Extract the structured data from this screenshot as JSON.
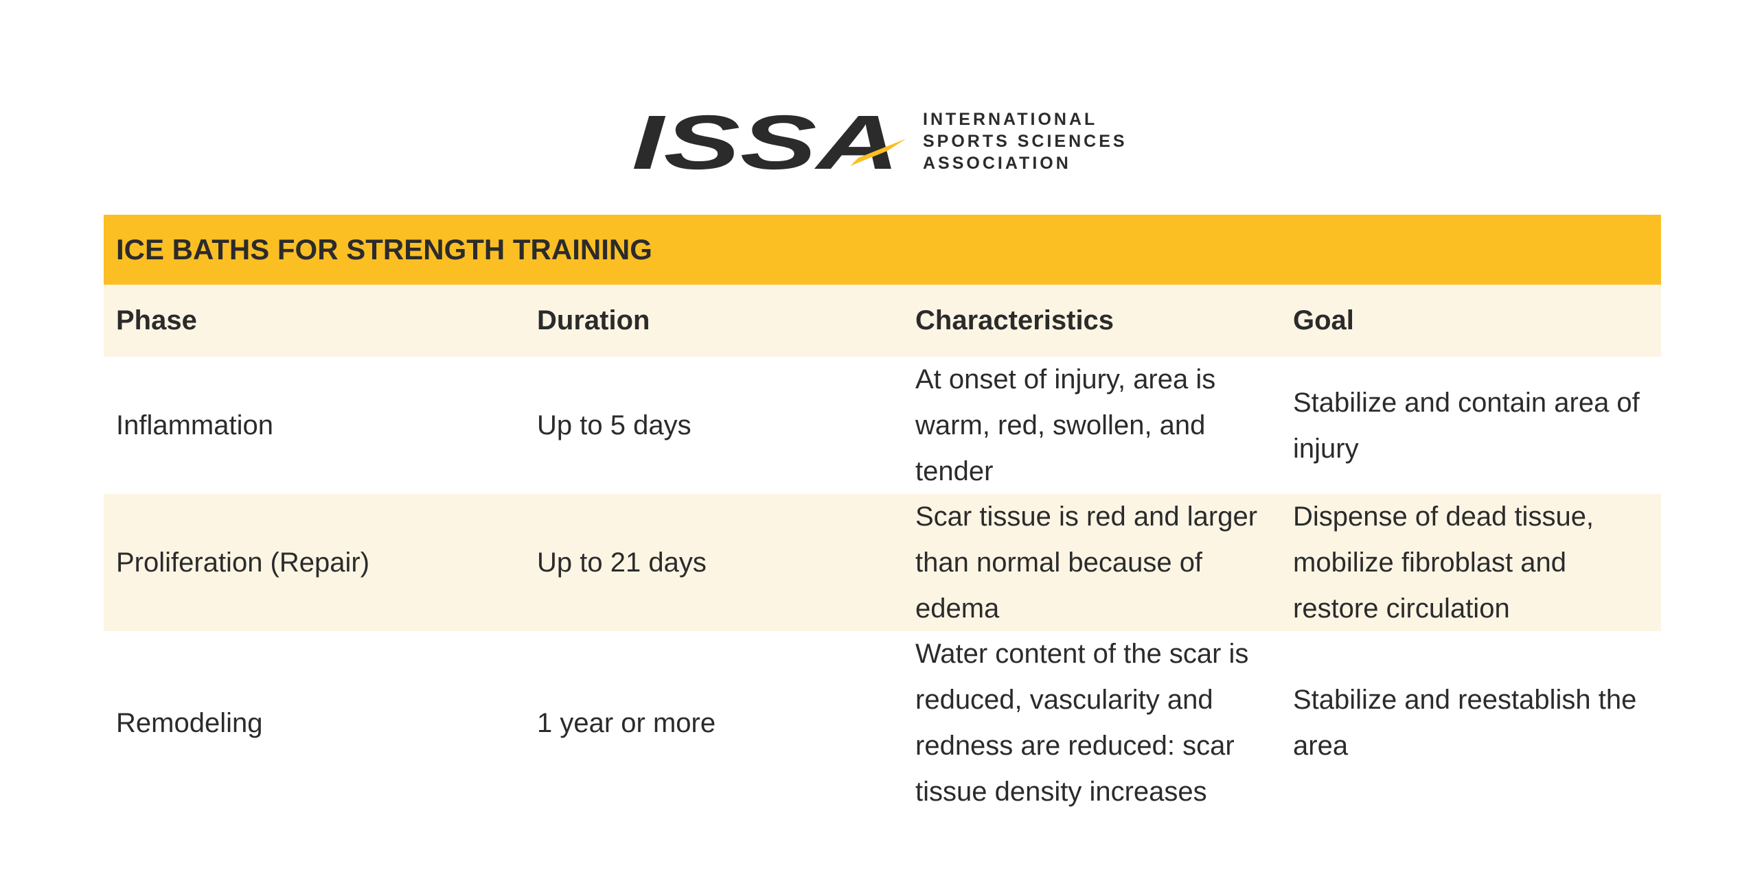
{
  "header": {
    "logo_mark": "ISSA",
    "logo_lines": [
      "INTERNATIONAL",
      "SPORTS SCIENCES",
      "ASSOCIATION"
    ]
  },
  "table": {
    "title": "ICE BATHS FOR STRENGTH TRAINING",
    "columns": [
      "Phase",
      "Duration",
      "Characteristics",
      "Goal"
    ],
    "rows": [
      [
        "Inflammation",
        "Up to 5 days",
        "At onset of injury, area is warm, red, swollen, and tender",
        "Stabilize and contain area of injury"
      ],
      [
        "Proliferation (Repair)",
        "Up to 21 days",
        "Scar tissue is red and larger than normal because of edema",
        "Dispense of dead tissue, mobilize fibroblast and restore circulation"
      ],
      [
        "Remodeling",
        "1 year or more",
        "Water content of the scar is reduced, vascularity and redness are reduced: scar tissue density increases",
        "Stabilize and reestablish the area"
      ]
    ]
  }
}
